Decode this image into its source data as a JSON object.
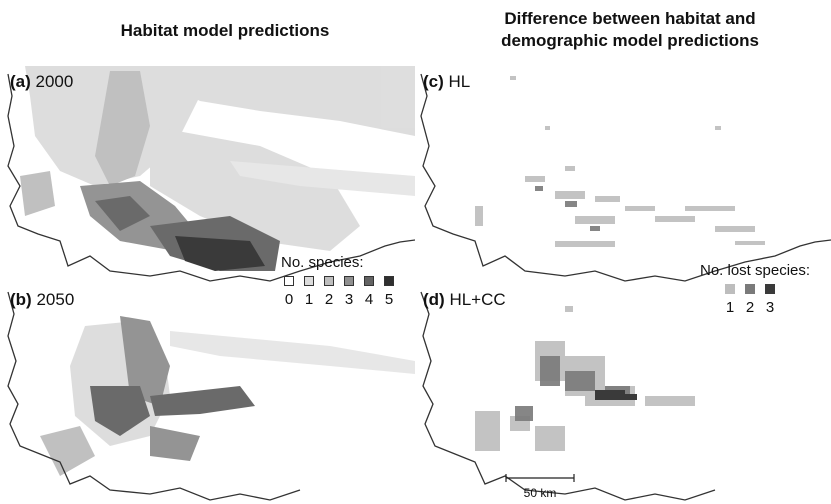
{
  "headings": {
    "left": "Habitat model predictions",
    "right_line1": "Difference between habitat and",
    "right_line2": "demographic model predictions"
  },
  "panels": [
    {
      "id": "a",
      "letter": "(a)",
      "label": "2000"
    },
    {
      "id": "b",
      "letter": "(b)",
      "label": "2050"
    },
    {
      "id": "c",
      "letter": "(c)",
      "label": "HL"
    },
    {
      "id": "d",
      "letter": "(d)",
      "label": "HL+CC"
    }
  ],
  "legend_species": {
    "title": "No. species:",
    "items": [
      {
        "value": "0",
        "color": "#ffffff"
      },
      {
        "value": "1",
        "color": "#dcdcdc"
      },
      {
        "value": "2",
        "color": "#bdbdbd"
      },
      {
        "value": "3",
        "color": "#8f8f8f"
      },
      {
        "value": "4",
        "color": "#636363"
      },
      {
        "value": "5",
        "color": "#303030"
      }
    ]
  },
  "legend_lost": {
    "title": "No. lost species:",
    "items": [
      {
        "value": "1",
        "color": "#bdbdbd"
      },
      {
        "value": "2",
        "color": "#7a7a7a"
      },
      {
        "value": "3",
        "color": "#3a3a3a"
      }
    ]
  },
  "scale": {
    "label": "50 km"
  }
}
